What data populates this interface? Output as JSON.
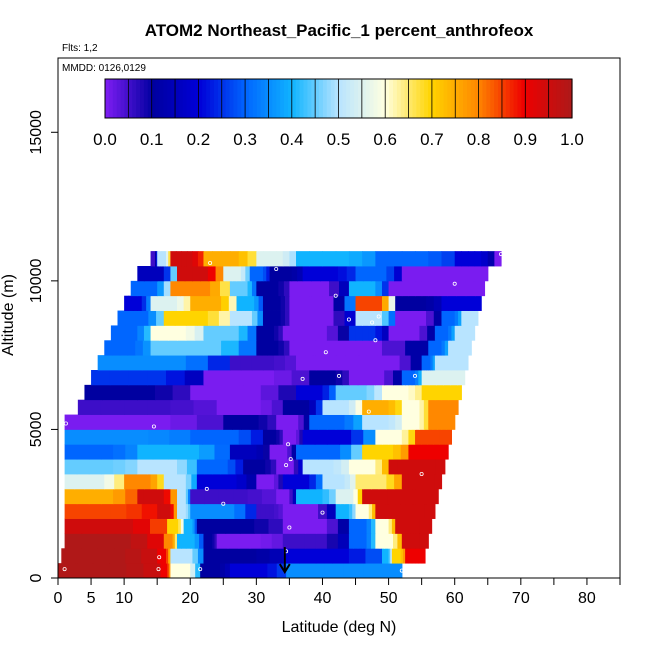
{
  "chart_data": {
    "type": "heatmap",
    "title": "ATOM2 Northeast_Pacific_1 percent_anthrofeox",
    "subtitle_lines": [
      "Flts: 1,2",
      "MMDD: 0126,0129"
    ],
    "xlabel": "Latitude (deg N)",
    "ylabel": "Altitude (m)",
    "xlim": [
      0,
      85
    ],
    "ylim": [
      0,
      17500
    ],
    "x_ticks": [
      0,
      5,
      10,
      20,
      30,
      40,
      50,
      60,
      70,
      80
    ],
    "x_minor_ticks": [
      15,
      25,
      35,
      45,
      55,
      65,
      75,
      85
    ],
    "y_ticks": [
      0,
      5000,
      10000,
      15000
    ],
    "colorbar": {
      "ticks": [
        0.0,
        0.1,
        0.2,
        0.3,
        0.4,
        0.5,
        0.6,
        0.7,
        0.8,
        0.9,
        1.0
      ],
      "tick_labels": [
        "0.0",
        "0.1",
        "0.2",
        "0.3",
        "0.4",
        "0.5",
        "0.6",
        "0.7",
        "0.8",
        "0.9",
        "1.0"
      ],
      "colors": [
        "#7a1cf0",
        "#0000a0",
        "#0000d8",
        "#0066ff",
        "#10b4ff",
        "#b8e4ff",
        "#ffffe0",
        "#ffd400",
        "#ff8800",
        "#ee0000",
        "#b01818"
      ]
    },
    "band_edges": [
      0,
      500,
      1000,
      1500,
      2000,
      2500,
      3000,
      3500,
      4000,
      4500,
      5000,
      5500,
      6000,
      6500,
      7000,
      7500,
      8000,
      8500,
      9000,
      9500,
      10000,
      10500,
      11000
    ],
    "curtain_rows": [
      {
        "y0": 0,
        "y1": 500,
        "lat_min": 0,
        "lat_max": 52,
        "segments": [
          [
            0,
            15.5,
            1.0
          ],
          [
            15.5,
            17,
            0.9
          ],
          [
            17,
            21.5,
            0.6
          ],
          [
            21.5,
            26,
            0.1
          ],
          [
            26,
            34.5,
            0.2
          ],
          [
            34.5,
            52,
            0.35
          ]
        ]
      },
      {
        "y0": 500,
        "y1": 1000,
        "lat_min": 0.5,
        "lat_max": 55.5,
        "segments": [
          [
            0.5,
            15,
            1.0
          ],
          [
            15,
            17,
            0.9
          ],
          [
            17,
            22,
            0.5
          ],
          [
            22,
            34,
            0.1
          ],
          [
            34,
            49,
            0.2
          ],
          [
            49,
            50.5,
            0.4
          ],
          [
            50.5,
            52.5,
            0.7
          ],
          [
            52.5,
            55.5,
            0.9
          ]
        ]
      },
      {
        "y0": 1000,
        "y1": 1500,
        "lat_min": 1,
        "lat_max": 56,
        "segments": [
          [
            1,
            16,
            1.0
          ],
          [
            16,
            18,
            0.8
          ],
          [
            18,
            22,
            0.4
          ],
          [
            22,
            24,
            0.1
          ],
          [
            24,
            34,
            0.0
          ],
          [
            34,
            44,
            0.05
          ],
          [
            44,
            48,
            0.3
          ],
          [
            48,
            52,
            0.6
          ],
          [
            52,
            56,
            0.95
          ]
        ]
      },
      {
        "y0": 1500,
        "y1": 2000,
        "lat_min": 1,
        "lat_max": 56.5,
        "segments": [
          [
            1,
            16.5,
            0.95
          ],
          [
            16.5,
            19,
            0.7
          ],
          [
            19,
            21,
            0.4
          ],
          [
            21,
            34,
            0.1
          ],
          [
            34,
            44,
            0.0
          ],
          [
            44,
            48,
            0.3
          ],
          [
            48,
            51,
            0.6
          ],
          [
            51,
            56.5,
            0.95
          ]
        ]
      },
      {
        "y0": 2000,
        "y1": 2500,
        "lat_min": 1,
        "lat_max": 57,
        "segments": [
          [
            1,
            15,
            0.85
          ],
          [
            15,
            18,
            0.95
          ],
          [
            18,
            20,
            0.5
          ],
          [
            20,
            30,
            0.35
          ],
          [
            30,
            34,
            0.05
          ],
          [
            34,
            42,
            0.0
          ],
          [
            42,
            45,
            0.4
          ],
          [
            45,
            48,
            0.6
          ],
          [
            48,
            57,
            0.95
          ]
        ]
      },
      {
        "y0": 2500,
        "y1": 3000,
        "lat_min": 1,
        "lat_max": 57.5,
        "segments": [
          [
            1,
            12,
            0.75
          ],
          [
            12,
            18,
            0.95
          ],
          [
            18,
            20,
            0.5
          ],
          [
            20,
            33,
            0.05
          ],
          [
            33,
            36,
            0.0
          ],
          [
            36,
            42,
            0.4
          ],
          [
            42,
            46,
            0.55
          ],
          [
            46,
            57.5,
            0.95
          ]
        ]
      },
      {
        "y0": 3000,
        "y1": 3500,
        "lat_min": 1,
        "lat_max": 58,
        "segments": [
          [
            1,
            10,
            0.55
          ],
          [
            10,
            16,
            0.8
          ],
          [
            16,
            21,
            0.5
          ],
          [
            21,
            30,
            0.2
          ],
          [
            30,
            34,
            0.0
          ],
          [
            34,
            40,
            0.2
          ],
          [
            40,
            45,
            0.5
          ],
          [
            45,
            52,
            0.65
          ],
          [
            52,
            58,
            0.95
          ]
        ]
      },
      {
        "y0": 3500,
        "y1": 4000,
        "lat_min": 1,
        "lat_max": 58.5,
        "segments": [
          [
            1,
            12,
            0.45
          ],
          [
            12,
            21,
            0.5
          ],
          [
            21,
            28,
            0.3
          ],
          [
            28,
            33,
            0.1
          ],
          [
            33,
            37,
            0.0
          ],
          [
            37,
            44,
            0.5
          ],
          [
            44,
            50,
            0.6
          ],
          [
            50,
            58.5,
            0.95
          ]
        ]
      },
      {
        "y0": 4000,
        "y1": 4500,
        "lat_min": 1,
        "lat_max": 59,
        "segments": [
          [
            1,
            12,
            0.3
          ],
          [
            12,
            26,
            0.4
          ],
          [
            26,
            32,
            0.15
          ],
          [
            32,
            36,
            0.0
          ],
          [
            36,
            46,
            0.3
          ],
          [
            46,
            53,
            0.7
          ],
          [
            53,
            59,
            0.9
          ]
        ]
      },
      {
        "y0": 4500,
        "y1": 5000,
        "lat_min": 1,
        "lat_max": 59.5,
        "segments": [
          [
            1,
            20,
            0.35
          ],
          [
            20,
            31,
            0.3
          ],
          [
            31,
            34,
            0.1
          ],
          [
            34,
            37,
            0.0
          ],
          [
            37,
            48,
            0.2
          ],
          [
            48,
            54,
            0.6
          ],
          [
            54,
            59.5,
            0.85
          ]
        ]
      },
      {
        "y0": 5000,
        "y1": 5500,
        "lat_min": 1,
        "lat_max": 60,
        "segments": [
          [
            1,
            25,
            0.0
          ],
          [
            25,
            33,
            0.1
          ],
          [
            33,
            38,
            0.0
          ],
          [
            38,
            46,
            0.3
          ],
          [
            46,
            52,
            0.5
          ],
          [
            52,
            56,
            0.6
          ],
          [
            56,
            60,
            0.8
          ]
        ]
      },
      {
        "y0": 5500,
        "y1": 6000,
        "lat_min": 3,
        "lat_max": 60.5,
        "segments": [
          [
            3,
            24,
            0.05
          ],
          [
            24,
            34,
            0.0
          ],
          [
            34,
            40,
            0.1
          ],
          [
            40,
            46,
            0.5
          ],
          [
            46,
            52,
            0.75
          ],
          [
            52,
            56,
            0.6
          ],
          [
            56,
            60.5,
            0.8
          ]
        ]
      },
      {
        "y0": 6000,
        "y1": 6500,
        "lat_min": 4,
        "lat_max": 61,
        "segments": [
          [
            4,
            20,
            0.1
          ],
          [
            20,
            36,
            0.0
          ],
          [
            36,
            42,
            0.2
          ],
          [
            42,
            49,
            0.45
          ],
          [
            49,
            55,
            0.6
          ],
          [
            55,
            61,
            0.7
          ]
        ]
      },
      {
        "y0": 6500,
        "y1": 7000,
        "lat_min": 5,
        "lat_max": 61.5,
        "segments": [
          [
            5,
            22,
            0.25
          ],
          [
            22,
            38,
            0.0
          ],
          [
            38,
            44,
            0.1
          ],
          [
            44,
            52,
            0.0
          ],
          [
            52,
            55,
            0.3
          ],
          [
            55,
            61.5,
            0.55
          ]
        ]
      },
      {
        "y0": 7000,
        "y1": 7500,
        "lat_min": 6,
        "lat_max": 62,
        "segments": [
          [
            6,
            26,
            0.35
          ],
          [
            26,
            36,
            0.05
          ],
          [
            36,
            45,
            0.0
          ],
          [
            45,
            55,
            0.0
          ],
          [
            55,
            57,
            0.3
          ],
          [
            57,
            62,
            0.5
          ]
        ]
      },
      {
        "y0": 7500,
        "y1": 8000,
        "lat_min": 7,
        "lat_max": 62.5,
        "segments": [
          [
            7,
            14,
            0.3
          ],
          [
            14,
            30,
            0.45
          ],
          [
            30,
            35,
            0.1
          ],
          [
            35,
            56,
            0.0
          ],
          [
            56,
            59,
            0.3
          ],
          [
            59,
            62.5,
            0.5
          ]
        ]
      },
      {
        "y0": 8000,
        "y1": 8500,
        "lat_min": 8,
        "lat_max": 63,
        "segments": [
          [
            8,
            14,
            0.3
          ],
          [
            14,
            22,
            0.6
          ],
          [
            22,
            30,
            0.45
          ],
          [
            30,
            34,
            0.1
          ],
          [
            34,
            44,
            0.0
          ],
          [
            44,
            50,
            0.25
          ],
          [
            50,
            57,
            0.0
          ],
          [
            57,
            60,
            0.3
          ],
          [
            60,
            63,
            0.5
          ]
        ]
      },
      {
        "y0": 8500,
        "y1": 9000,
        "lat_min": 9,
        "lat_max": 63.5,
        "segments": [
          [
            9,
            16,
            0.3
          ],
          [
            16,
            26,
            0.7
          ],
          [
            26,
            31,
            0.5
          ],
          [
            31,
            35,
            0.1
          ],
          [
            35,
            45,
            0.0
          ],
          [
            45,
            51,
            0.5
          ],
          [
            51,
            58,
            0.0
          ],
          [
            58,
            61,
            0.3
          ],
          [
            61,
            63.5,
            0.5
          ]
        ]
      },
      {
        "y0": 9000,
        "y1": 9500,
        "lat_min": 10,
        "lat_max": 64,
        "segments": [
          [
            10,
            14,
            0.2
          ],
          [
            14,
            20,
            0.55
          ],
          [
            20,
            27,
            0.75
          ],
          [
            27,
            31,
            0.4
          ],
          [
            31,
            35,
            0.1
          ],
          [
            35,
            45,
            0.0
          ],
          [
            45,
            51,
            0.85
          ],
          [
            51,
            58,
            0.1
          ],
          [
            58,
            64,
            0.2
          ]
        ]
      },
      {
        "y0": 9500,
        "y1": 10000,
        "lat_min": 11,
        "lat_max": 64.5,
        "segments": [
          [
            11,
            17,
            0.3
          ],
          [
            17,
            26,
            0.8
          ],
          [
            26,
            30,
            0.45
          ],
          [
            30,
            35,
            0.1
          ],
          [
            35,
            44,
            0.0
          ],
          [
            44,
            50,
            0.4
          ],
          [
            50,
            56,
            0.0
          ],
          [
            56,
            64.5,
            0.0
          ]
        ]
      },
      {
        "y0": 10000,
        "y1": 10500,
        "lat_min": 12,
        "lat_max": 65,
        "segments": [
          [
            12,
            18,
            0.15
          ],
          [
            18,
            25,
            0.95
          ],
          [
            25,
            29,
            0.55
          ],
          [
            29,
            32,
            0.3
          ],
          [
            32,
            37,
            0.1
          ],
          [
            37,
            45,
            0.2
          ],
          [
            45,
            52,
            0.3
          ],
          [
            52,
            65,
            0.0
          ]
        ]
      },
      {
        "y0": 10500,
        "y1": 11000,
        "lat_min": 14,
        "lat_max": 67,
        "segments": [
          [
            14,
            15,
            0.05
          ],
          [
            15,
            17,
            0.5
          ],
          [
            17,
            22,
            0.95
          ],
          [
            22,
            30,
            0.75
          ],
          [
            30,
            36,
            0.55
          ],
          [
            36,
            48,
            0.4
          ],
          [
            48,
            60,
            0.3
          ],
          [
            60,
            66,
            0.2
          ],
          [
            66,
            67,
            0.0
          ]
        ]
      }
    ],
    "sample_points": [
      [
        15.2,
        300
      ],
      [
        15.3,
        700
      ],
      [
        21.5,
        300
      ],
      [
        52,
        250
      ],
      [
        56,
        300
      ],
      [
        1,
        300
      ],
      [
        34.5,
        900
      ],
      [
        35,
        1700
      ],
      [
        40,
        2200
      ],
      [
        25,
        2500
      ],
      [
        22.5,
        3000
      ],
      [
        34.5,
        3800
      ],
      [
        55,
        3500
      ],
      [
        35.2,
        4000
      ],
      [
        34.8,
        4500
      ],
      [
        14.5,
        5100
      ],
      [
        1.2,
        5200
      ],
      [
        47,
        5600
      ],
      [
        37,
        6700
      ],
      [
        42.5,
        6800
      ],
      [
        54,
        6800
      ],
      [
        40.5,
        7600
      ],
      [
        48,
        8000
      ],
      [
        47.5,
        8600
      ],
      [
        44,
        8700
      ],
      [
        48.5,
        8800
      ],
      [
        42,
        9500
      ],
      [
        60,
        9900
      ],
      [
        33,
        10400
      ],
      [
        23,
        10600
      ],
      [
        67,
        10900
      ],
      [
        15.5,
        11300
      ]
    ],
    "flight_marker": {
      "lat": 34.3,
      "alt": 300
    }
  }
}
